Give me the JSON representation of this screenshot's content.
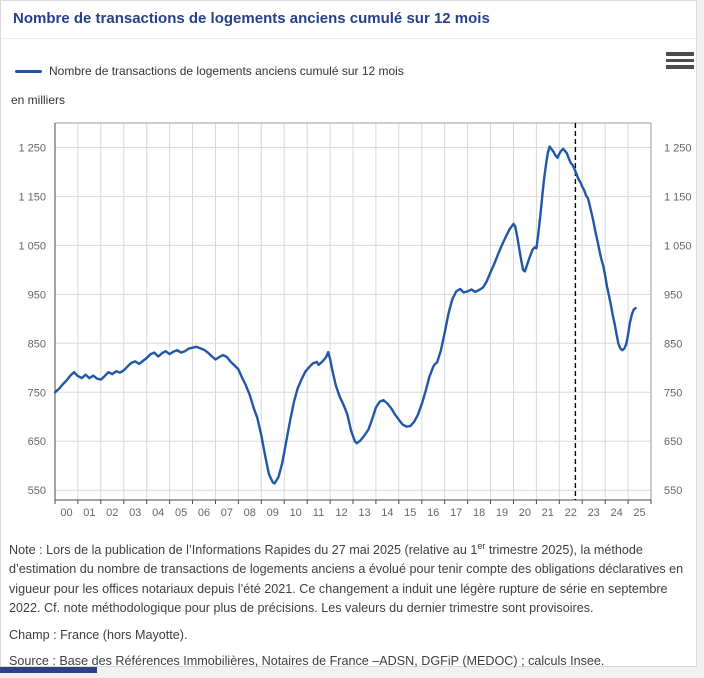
{
  "header": {
    "title": "Nombre de transactions de logements anciens cumulé sur 12 mois"
  },
  "legend": {
    "label": "Nombre de transactions de logements anciens cumulé sur 12 mois"
  },
  "menu": {
    "icon": "hamburger-menu"
  },
  "colors": {
    "title": "#24418d",
    "series_line": "#2157a7",
    "grid": "#d8d8d8",
    "rupture_line": "#000000",
    "bottom_bar": "#2f4186"
  },
  "chart_data": {
    "type": "line",
    "title": "Nombre de transactions de logements anciens cumulé sur 12 mois",
    "unit_label": "en milliers",
    "xlabel": "",
    "ylabel": "en milliers",
    "grid": true,
    "legend_position": "top-left",
    "x_domain": [
      2000,
      2026
    ],
    "y_domain": [
      530,
      1300
    ],
    "x_tick_labels": [
      "00",
      "01",
      "02",
      "03",
      "04",
      "05",
      "06",
      "07",
      "08",
      "09",
      "10",
      "11",
      "12",
      "13",
      "14",
      "15",
      "16",
      "17",
      "18",
      "19",
      "20",
      "21",
      "22",
      "23",
      "24",
      "25"
    ],
    "y_ticks": [
      {
        "value": 550,
        "label": "550"
      },
      {
        "value": 650,
        "label": "650"
      },
      {
        "value": 750,
        "label": "750"
      },
      {
        "value": 850,
        "label": "850"
      },
      {
        "value": 950,
        "label": "950"
      },
      {
        "value": 1050,
        "label": "1 050"
      },
      {
        "value": 1150,
        "label": "1 150"
      },
      {
        "value": 1250,
        "label": "1 250"
      }
    ],
    "rupture_line": {
      "x": 2022.7,
      "style": "dashed",
      "color": "#000000"
    },
    "series": [
      {
        "name": "Nombre de transactions de logements anciens cumulé sur 12 mois",
        "color": "#2157a7",
        "points": [
          [
            2000.0,
            750
          ],
          [
            2000.17,
            757
          ],
          [
            2000.33,
            766
          ],
          [
            2000.5,
            774
          ],
          [
            2000.67,
            784
          ],
          [
            2000.83,
            791
          ],
          [
            2001.0,
            783
          ],
          [
            2001.17,
            779
          ],
          [
            2001.33,
            786
          ],
          [
            2001.5,
            779
          ],
          [
            2001.67,
            784
          ],
          [
            2001.83,
            778
          ],
          [
            2002.0,
            776
          ],
          [
            2002.17,
            783
          ],
          [
            2002.33,
            791
          ],
          [
            2002.5,
            787
          ],
          [
            2002.67,
            793
          ],
          [
            2002.83,
            790
          ],
          [
            2003.0,
            795
          ],
          [
            2003.17,
            803
          ],
          [
            2003.33,
            810
          ],
          [
            2003.5,
            813
          ],
          [
            2003.67,
            808
          ],
          [
            2003.83,
            814
          ],
          [
            2004.0,
            820
          ],
          [
            2004.17,
            828
          ],
          [
            2004.33,
            831
          ],
          [
            2004.5,
            823
          ],
          [
            2004.67,
            830
          ],
          [
            2004.83,
            834
          ],
          [
            2005.0,
            828
          ],
          [
            2005.17,
            833
          ],
          [
            2005.33,
            836
          ],
          [
            2005.5,
            831
          ],
          [
            2005.67,
            834
          ],
          [
            2005.83,
            839
          ],
          [
            2006.0,
            841
          ],
          [
            2006.17,
            843
          ],
          [
            2006.33,
            840
          ],
          [
            2006.5,
            837
          ],
          [
            2006.67,
            831
          ],
          [
            2006.83,
            824
          ],
          [
            2007.0,
            817
          ],
          [
            2007.17,
            822
          ],
          [
            2007.33,
            826
          ],
          [
            2007.5,
            822
          ],
          [
            2007.67,
            812
          ],
          [
            2007.83,
            805
          ],
          [
            2008.0,
            797
          ],
          [
            2008.17,
            779
          ],
          [
            2008.33,
            764
          ],
          [
            2008.5,
            744
          ],
          [
            2008.67,
            718
          ],
          [
            2008.83,
            697
          ],
          [
            2009.0,
            662
          ],
          [
            2009.17,
            620
          ],
          [
            2009.33,
            583
          ],
          [
            2009.5,
            566
          ],
          [
            2009.58,
            564
          ],
          [
            2009.75,
            577
          ],
          [
            2009.92,
            607
          ],
          [
            2010.08,
            648
          ],
          [
            2010.25,
            691
          ],
          [
            2010.42,
            730
          ],
          [
            2010.58,
            757
          ],
          [
            2010.75,
            776
          ],
          [
            2010.92,
            792
          ],
          [
            2011.08,
            801
          ],
          [
            2011.25,
            809
          ],
          [
            2011.42,
            812
          ],
          [
            2011.5,
            806
          ],
          [
            2011.67,
            813
          ],
          [
            2011.83,
            822
          ],
          [
            2011.92,
            832
          ],
          [
            2012.0,
            818
          ],
          [
            2012.08,
            799
          ],
          [
            2012.25,
            764
          ],
          [
            2012.42,
            741
          ],
          [
            2012.58,
            725
          ],
          [
            2012.75,
            705
          ],
          [
            2012.92,
            671
          ],
          [
            2013.08,
            650
          ],
          [
            2013.17,
            646
          ],
          [
            2013.33,
            652
          ],
          [
            2013.5,
            662
          ],
          [
            2013.67,
            674
          ],
          [
            2013.83,
            694
          ],
          [
            2014.0,
            719
          ],
          [
            2014.17,
            731
          ],
          [
            2014.33,
            734
          ],
          [
            2014.5,
            727
          ],
          [
            2014.67,
            717
          ],
          [
            2014.83,
            705
          ],
          [
            2015.0,
            694
          ],
          [
            2015.17,
            684
          ],
          [
            2015.33,
            680
          ],
          [
            2015.5,
            681
          ],
          [
            2015.67,
            690
          ],
          [
            2015.83,
            704
          ],
          [
            2016.0,
            726
          ],
          [
            2016.17,
            753
          ],
          [
            2016.33,
            781
          ],
          [
            2016.5,
            802
          ],
          [
            2016.58,
            808
          ],
          [
            2016.67,
            811
          ],
          [
            2016.83,
            835
          ],
          [
            2017.0,
            872
          ],
          [
            2017.17,
            912
          ],
          [
            2017.33,
            940
          ],
          [
            2017.5,
            956
          ],
          [
            2017.67,
            961
          ],
          [
            2017.83,
            954
          ],
          [
            2018.0,
            956
          ],
          [
            2018.17,
            960
          ],
          [
            2018.33,
            955
          ],
          [
            2018.5,
            959
          ],
          [
            2018.67,
            964
          ],
          [
            2018.83,
            976
          ],
          [
            2019.0,
            995
          ],
          [
            2019.17,
            1013
          ],
          [
            2019.33,
            1032
          ],
          [
            2019.5,
            1051
          ],
          [
            2019.67,
            1068
          ],
          [
            2019.83,
            1083
          ],
          [
            2020.0,
            1094
          ],
          [
            2020.08,
            1088
          ],
          [
            2020.17,
            1066
          ],
          [
            2020.33,
            1022
          ],
          [
            2020.42,
            1000
          ],
          [
            2020.5,
            997
          ],
          [
            2020.67,
            1021
          ],
          [
            2020.83,
            1041
          ],
          [
            2020.92,
            1046
          ],
          [
            2021.0,
            1044
          ],
          [
            2021.08,
            1072
          ],
          [
            2021.17,
            1110
          ],
          [
            2021.25,
            1147
          ],
          [
            2021.33,
            1183
          ],
          [
            2021.42,
            1215
          ],
          [
            2021.5,
            1239
          ],
          [
            2021.58,
            1252
          ],
          [
            2021.67,
            1246
          ],
          [
            2021.75,
            1241
          ],
          [
            2021.83,
            1234
          ],
          [
            2021.92,
            1229
          ],
          [
            2022.0,
            1237
          ],
          [
            2022.08,
            1243
          ],
          [
            2022.17,
            1247
          ],
          [
            2022.25,
            1243
          ],
          [
            2022.33,
            1238
          ],
          [
            2022.42,
            1227
          ],
          [
            2022.5,
            1218
          ],
          [
            2022.58,
            1214
          ],
          [
            2022.67,
            1205
          ],
          [
            2022.75,
            1196
          ],
          [
            2022.83,
            1186
          ],
          [
            2022.92,
            1179
          ],
          [
            2023.0,
            1170
          ],
          [
            2023.08,
            1163
          ],
          [
            2023.17,
            1152
          ],
          [
            2023.25,
            1146
          ],
          [
            2023.33,
            1131
          ],
          [
            2023.42,
            1113
          ],
          [
            2023.5,
            1096
          ],
          [
            2023.58,
            1077
          ],
          [
            2023.67,
            1058
          ],
          [
            2023.75,
            1040
          ],
          [
            2023.83,
            1022
          ],
          [
            2023.92,
            1008
          ],
          [
            2024.0,
            988
          ],
          [
            2024.08,
            966
          ],
          [
            2024.17,
            946
          ],
          [
            2024.25,
            928
          ],
          [
            2024.33,
            908
          ],
          [
            2024.42,
            888
          ],
          [
            2024.5,
            868
          ],
          [
            2024.58,
            849
          ],
          [
            2024.67,
            839
          ],
          [
            2024.75,
            836
          ],
          [
            2024.83,
            839
          ],
          [
            2024.92,
            848
          ],
          [
            2025.0,
            868
          ],
          [
            2025.08,
            892
          ],
          [
            2025.17,
            910
          ],
          [
            2025.25,
            919
          ],
          [
            2025.33,
            922
          ]
        ]
      }
    ]
  },
  "footer": {
    "note_prefix": "Note : Lors de la publication de l’Informations Rapides du 27 mai 2025 (relative au 1",
    "note_sup": "er",
    "note_suffix": " trimestre 2025), la méthode d’estimation du nombre de transactions de logements anciens a évolué pour tenir compte des obligations déclaratives en vigueur pour les offices notariaux depuis l’été 2021. Ce changement a induit une légère rupture de série en septembre 2022. Cf. note méthodologique pour plus de précisions. Les valeurs du dernier trimestre sont provisoires.",
    "champ": "Champ : France (hors Mayotte).",
    "source": "Source : Base des Références Immobilières, Notaires de France –ADSN, DGFiP (MEDOC) ; calculs Insee."
  }
}
